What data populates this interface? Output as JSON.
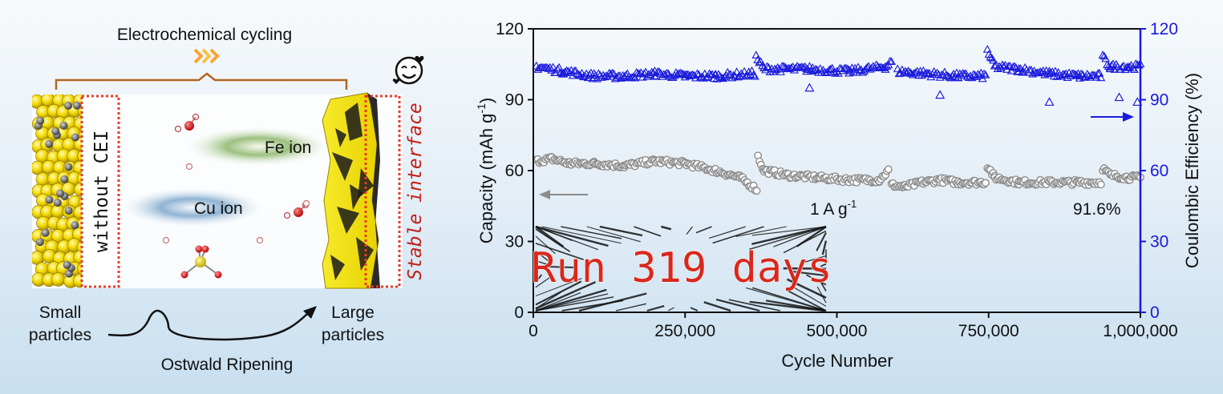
{
  "schematic": {
    "top_label": "Electrochemical cycling",
    "left_tag": "without CEI",
    "right_tag": "Stable interface",
    "ion_fe": "Fe ion",
    "ion_cu": "Cu ion",
    "small_particles": [
      "Small",
      "particles"
    ],
    "large_particles": [
      "Large",
      "particles"
    ],
    "process": "Ostwald Ripening"
  },
  "chart_data": {
    "type": "scatter",
    "xlabel": "Cycle Number",
    "ylabel_left_main": "Capacity (mAh g",
    "ylabel_left_sup": "-1",
    "ylabel_left_end": ")",
    "ylabel_right": "Coulombic Efficiency (%)",
    "xlim": [
      0,
      1000000
    ],
    "ylim_left": [
      0,
      120
    ],
    "ylim_right": [
      0,
      120
    ],
    "x_ticks": [
      0,
      250000,
      500000,
      750000,
      1000000
    ],
    "x_tick_labels": [
      "0",
      "250,000",
      "500,000",
      "750,000",
      "1,000,000"
    ],
    "y_ticks": [
      0,
      30,
      60,
      90,
      120
    ],
    "y_tick_labels": [
      "0",
      "30",
      "60",
      "90",
      "120"
    ],
    "annotations": {
      "current_main": "1 A g",
      "current_sup": "-1",
      "retention": "91.6%",
      "duration": "Run 319 days"
    },
    "colors": {
      "capacity": "#8c8c8c",
      "efficiency": "#1a1adc",
      "right_axis": "#1a1adc",
      "duration_text": "#d8281c"
    },
    "series": [
      {
        "axis": "left",
        "marker": "circle",
        "segments": [
          {
            "x": [
              5000,
              30000,
              60000,
              100000,
              150000,
              200000,
              250000,
              300000,
              340000,
              368000
            ],
            "y": [
              64,
              65,
              63,
              63,
              62,
              64,
              63,
              60,
              57,
              52
            ]
          },
          {
            "x": [
              370000,
              380000,
              420000,
              470000,
              520000,
              570000,
              585000
            ],
            "y": [
              66,
              60,
              58,
              57,
              56,
              56,
              60
            ]
          },
          {
            "x": [
              590000,
              610000,
              640000,
              670000,
              700000,
              745000
            ],
            "y": [
              54,
              53,
              55,
              56,
              55,
              55
            ]
          },
          {
            "x": [
              748000,
              760000,
              800000,
              850000,
              900000,
              935000
            ],
            "y": [
              62,
              57,
              55,
              55,
              55,
              55
            ]
          },
          {
            "x": [
              938000,
              950000,
              980000,
              1000000
            ],
            "y": [
              61,
              58,
              57,
              57
            ]
          }
        ]
      },
      {
        "axis": "right",
        "marker": "triangle",
        "segments": [
          {
            "x": [
              5000,
              50000,
              100000,
              150000,
              200000,
              250000,
              300000,
              365000
            ],
            "y": [
              104,
              102,
              100,
              100,
              101,
              100,
              100,
              101
            ]
          },
          {
            "x": [
              367000,
              380000,
              450000,
              520000,
              580000,
              590000
            ],
            "y": [
              108,
              103,
              103,
              102,
              104,
              106
            ]
          },
          {
            "x": [
              600000,
              650000,
              700000,
              745000
            ],
            "y": [
              102,
              101,
              100,
              100
            ]
          },
          {
            "x": [
              748000,
              760000,
              800000,
              850000,
              900000,
              935000
            ],
            "y": [
              111,
              104,
              103,
              101,
              100,
              100
            ]
          },
          {
            "x": [
              938000,
              950000,
              980000,
              1000000
            ],
            "y": [
              108,
              104,
              104,
              104
            ]
          }
        ]
      }
    ],
    "outliers_right": [
      [
        455000,
        95
      ],
      [
        670000,
        92
      ],
      [
        850000,
        89
      ],
      [
        965000,
        91
      ],
      [
        995000,
        89
      ]
    ]
  }
}
